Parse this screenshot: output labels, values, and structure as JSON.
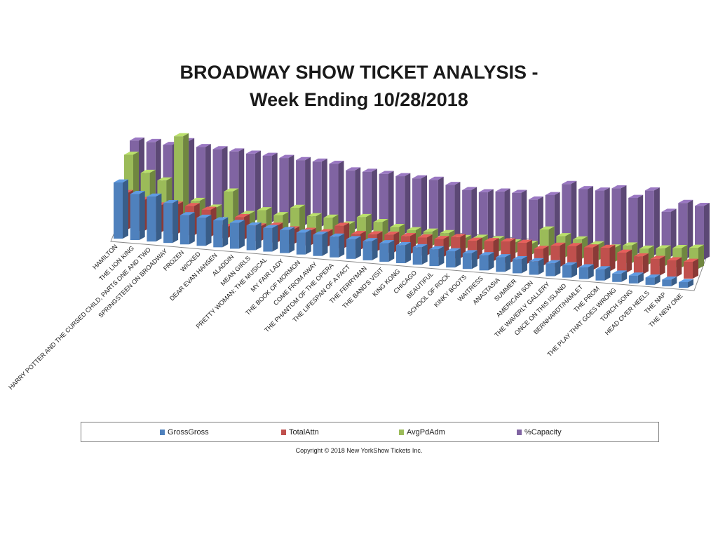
{
  "chart_data": {
    "type": "bar",
    "title_line1": "BROADWAY  SHOW TICKET ANALYSIS -",
    "title_line2": "Week Ending 10/28/2018",
    "categories": [
      "HAMILTON",
      "THE LION KING",
      "HARRY POTTER AND THE CURSED CHILD, PARTS ONE AND TWO",
      "SPRINGSTEEN ON BROADWAY",
      "FROZEN",
      "WICKED",
      "DEAR EVAN HANSEN",
      "ALADDIN",
      "MEAN GIRLS",
      "PRETTY WOMAN: THE MUSICAL",
      "MY FAIR LADY",
      "THE BOOK OF MORMON",
      "COME FROM AWAY",
      "THE PHANTOM OF THE OPERA",
      "THE LIFESPAN OF A FACT",
      "THE FERRYMAN",
      "THE BAND'S VISIT",
      "KING KONG",
      "CHICAGO",
      "BEAUTIFUL",
      "SCHOOL OF ROCK",
      "KINKY BOOTS",
      "WAITRESS",
      "ANASTASIA",
      "SUMMER",
      "AMERICAN SON",
      "THE WAVERLY GALLERY",
      "ONCE ON THIS ISLAND",
      "BERNHARDT/HAMLET",
      "THE PROM",
      "THE PLAY THAT GOES WRONG",
      "TORCH SONG",
      "HEAD OVER HEELS",
      "THE NAP",
      "THE NEW ONE"
    ],
    "series": [
      {
        "name": "GrossGross",
        "color": "#4f81bd",
        "values": [
          100,
          82,
          80,
          71,
          52,
          50,
          48,
          46,
          44,
          42,
          41,
          39,
          38,
          37,
          35,
          34,
          33,
          32,
          31,
          30,
          29,
          28,
          27,
          26,
          25,
          24,
          23,
          22,
          21,
          20,
          15,
          14,
          13,
          12,
          10
        ]
      },
      {
        "name": "TotalAttn",
        "color": "#c0504d",
        "values": [
          65,
          55,
          48,
          52,
          52,
          48,
          20,
          40,
          26,
          30,
          26,
          26,
          26,
          40,
          28,
          30,
          32,
          32,
          32,
          32,
          38,
          34,
          36,
          38,
          38,
          30,
          38,
          40,
          40,
          42,
          36,
          32,
          30,
          30,
          30
        ]
      },
      {
        "name": "AvgPdAdm",
        "color": "#9bbb59",
        "values": [
          74,
          55,
          48,
          100,
          28,
          22,
          42,
          18,
          24,
          20,
          30,
          22,
          22,
          16,
          26,
          22,
          18,
          16,
          16,
          16,
          12,
          14,
          14,
          12,
          12,
          30,
          24,
          22,
          18,
          16,
          20,
          18,
          20,
          22,
          24
        ]
      },
      {
        "name": "%Capacity",
        "color": "#8064a2",
        "values": [
          95,
          95,
          93,
          100,
          94,
          93,
          92,
          91,
          90,
          89,
          88,
          88,
          87,
          80,
          80,
          79,
          78,
          77,
          77,
          72,
          67,
          66,
          69,
          69,
          62,
          70,
          87,
          82,
          82,
          87,
          76,
          88,
          61,
          75,
          73
        ]
      }
    ],
    "grid": false,
    "legend_position": "bottom",
    "xlabel": "",
    "ylabel": ""
  },
  "legend_items": [
    "GrossGross",
    "TotalAttn",
    "AvgPdAdm",
    "%Capacity"
  ],
  "copyright": "Copyright © 2018 New YorkShow Tickets Inc."
}
